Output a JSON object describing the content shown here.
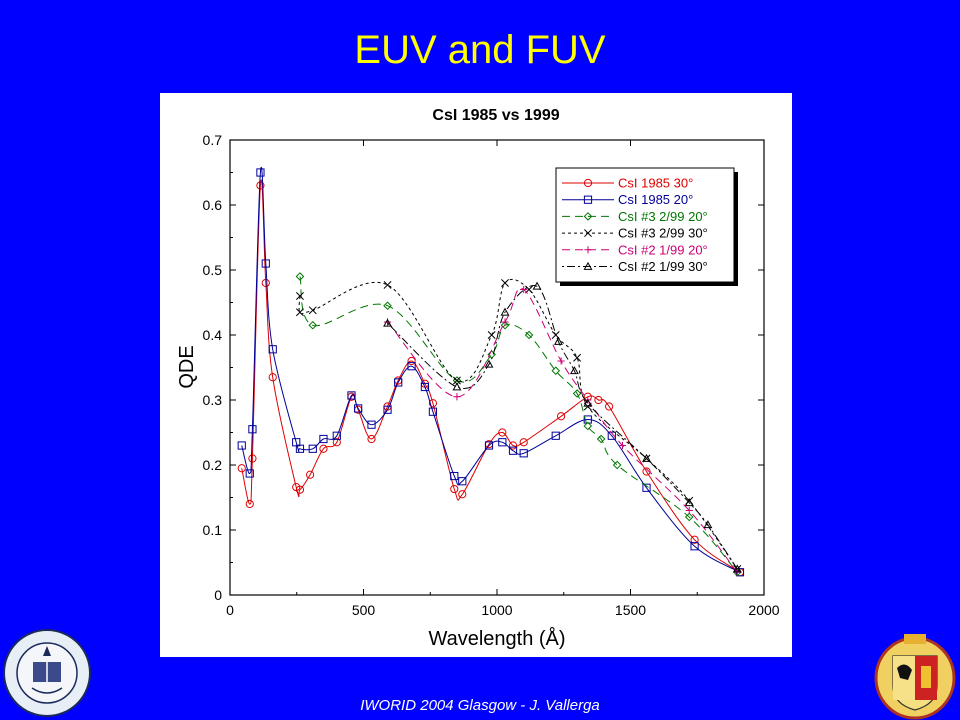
{
  "slide": {
    "title": "EUV and FUV",
    "footer": "IWORID 2004 Glasgow - J. Vallerga",
    "colors": {
      "background": "#0000ff",
      "title": "#ffff00",
      "footer": "#ffffff"
    },
    "logos": [
      {
        "name": "uc-berkeley-seal",
        "text": "THE UNIVERSITY OF CALIFORNIA BERKELEY 1868"
      },
      {
        "name": "geneva-coat-of-arms"
      }
    ]
  },
  "chart_data": {
    "type": "line",
    "title": "CsI 1985 vs 1999",
    "xlabel": "Wavelength (Å)",
    "ylabel": "QDE",
    "xlim": [
      0,
      2000
    ],
    "ylim": [
      0,
      0.7
    ],
    "xticks": [
      "0",
      "500",
      "1000",
      "1500",
      "2000"
    ],
    "yticks": [
      "0",
      "0.1",
      "0.2",
      "0.3",
      "0.4",
      "0.5",
      "0.6",
      "0.7"
    ],
    "grid": false,
    "legend_position": "top-right",
    "series": [
      {
        "name": "CsI 1985 30°",
        "color": "#dd0000",
        "marker": "circle",
        "dash": "",
        "x": [
          44,
          74,
          84,
          114,
          134,
          160,
          248,
          262,
          300,
          350,
          400,
          455,
          480,
          530,
          590,
          630,
          680,
          730,
          760,
          840,
          870,
          970,
          1020,
          1060,
          1100,
          1240,
          1340,
          1380,
          1420,
          1560,
          1740,
          1910
        ],
        "y": [
          0.195,
          0.14,
          0.21,
          0.63,
          0.48,
          0.335,
          0.166,
          0.162,
          0.185,
          0.225,
          0.235,
          0.305,
          0.285,
          0.24,
          0.29,
          0.33,
          0.36,
          0.325,
          0.295,
          0.163,
          0.155,
          0.232,
          0.25,
          0.23,
          0.235,
          0.275,
          0.305,
          0.3,
          0.29,
          0.19,
          0.085,
          0.035
        ]
      },
      {
        "name": "CsI 1985 20°",
        "color": "#000099",
        "marker": "square",
        "dash": "",
        "x": [
          44,
          74,
          84,
          114,
          134,
          160,
          248,
          262,
          310,
          350,
          400,
          455,
          480,
          530,
          590,
          630,
          680,
          730,
          760,
          840,
          870,
          970,
          1020,
          1060,
          1100,
          1220,
          1340,
          1430,
          1560,
          1740,
          1910
        ],
        "y": [
          0.23,
          0.187,
          0.255,
          0.65,
          0.51,
          0.378,
          0.235,
          0.225,
          0.225,
          0.24,
          0.245,
          0.307,
          0.287,
          0.262,
          0.285,
          0.327,
          0.352,
          0.32,
          0.282,
          0.183,
          0.175,
          0.23,
          0.235,
          0.222,
          0.218,
          0.245,
          0.27,
          0.245,
          0.165,
          0.075,
          0.035
        ]
      },
      {
        "name": "CsI #3 2/99 20°",
        "color": "#007700",
        "marker": "diamond",
        "dash": "8,5",
        "x": [
          262,
          310,
          590,
          850,
          980,
          1030,
          1120,
          1220,
          1300,
          1340,
          1390,
          1450,
          1720,
          1900
        ],
        "y": [
          0.49,
          0.415,
          0.445,
          0.33,
          0.37,
          0.415,
          0.4,
          0.345,
          0.31,
          0.26,
          0.24,
          0.2,
          0.12,
          0.035
        ]
      },
      {
        "name": "CsI #3 2/99 30°",
        "color": "#000000",
        "marker": "x",
        "dash": "3,3",
        "x": [
          262,
          262,
          310,
          590,
          850,
          980,
          1030,
          1120,
          1220,
          1300,
          1340,
          1560,
          1720,
          1900
        ],
        "y": [
          0.46,
          0.435,
          0.438,
          0.477,
          0.33,
          0.4,
          0.48,
          0.47,
          0.4,
          0.365,
          0.29,
          0.21,
          0.145,
          0.04
        ]
      },
      {
        "name": "CsI #2 1/99 20°",
        "color": "#cc0077",
        "marker": "plus",
        "dash": "8,5",
        "x": [
          590,
          850,
          1030,
          1100,
          1240,
          1340,
          1470,
          1720,
          1900
        ],
        "y": [
          0.42,
          0.305,
          0.42,
          0.47,
          0.36,
          0.3,
          0.23,
          0.13,
          0.035
        ]
      },
      {
        "name": "CsI #2 1/99 30°",
        "color": "#000000",
        "marker": "triangle",
        "dash": "2,3,8,3",
        "x": [
          590,
          850,
          970,
          1030,
          1150,
          1230,
          1290,
          1340,
          1560,
          1720,
          1790,
          1900
        ],
        "y": [
          0.418,
          0.32,
          0.355,
          0.435,
          0.475,
          0.39,
          0.345,
          0.295,
          0.21,
          0.142,
          0.108,
          0.04
        ]
      }
    ]
  }
}
